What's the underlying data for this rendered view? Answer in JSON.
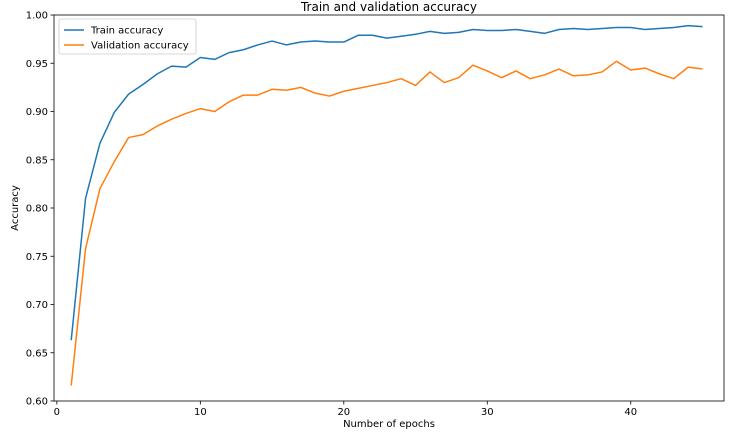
{
  "chart_data": {
    "type": "line",
    "title": "Train and validation accuracy",
    "xlabel": "Number of epochs",
    "ylabel": "Accuracy",
    "xlim": [
      -0.2,
      46.5
    ],
    "ylim": [
      0.6,
      1.0
    ],
    "xticks": [
      0,
      10,
      20,
      30,
      40
    ],
    "yticks": [
      0.6,
      0.65,
      0.7,
      0.75,
      0.8,
      0.85,
      0.9,
      0.95,
      1.0
    ],
    "ytick_labels": [
      "0.60",
      "0.65",
      "0.70",
      "0.75",
      "0.80",
      "0.85",
      "0.90",
      "0.95",
      "1.00"
    ],
    "grid": false,
    "legend_position": "upper-left",
    "x": [
      1,
      2,
      3,
      4,
      5,
      6,
      7,
      8,
      9,
      10,
      11,
      12,
      13,
      14,
      15,
      16,
      17,
      18,
      19,
      20,
      21,
      22,
      23,
      24,
      25,
      26,
      27,
      28,
      29,
      30,
      31,
      32,
      33,
      34,
      35,
      36,
      37,
      38,
      39,
      40,
      41,
      42,
      43,
      44,
      45
    ],
    "series": [
      {
        "name": "Train accuracy",
        "color": "#1f77b4",
        "values": [
          0.663,
          0.81,
          0.867,
          0.899,
          0.918,
          0.928,
          0.939,
          0.947,
          0.946,
          0.956,
          0.954,
          0.961,
          0.964,
          0.969,
          0.973,
          0.969,
          0.972,
          0.973,
          0.972,
          0.972,
          0.979,
          0.979,
          0.976,
          0.978,
          0.98,
          0.983,
          0.981,
          0.982,
          0.985,
          0.984,
          0.984,
          0.985,
          0.983,
          0.981,
          0.985,
          0.986,
          0.985,
          0.986,
          0.987,
          0.987,
          0.985,
          0.986,
          0.987,
          0.989,
          0.988
        ]
      },
      {
        "name": "Validation accuracy",
        "color": "#ff7f0e",
        "values": [
          0.616,
          0.758,
          0.82,
          0.848,
          0.873,
          0.876,
          0.885,
          0.892,
          0.898,
          0.903,
          0.9,
          0.91,
          0.917,
          0.917,
          0.923,
          0.922,
          0.925,
          0.919,
          0.916,
          0.921,
          0.924,
          0.927,
          0.93,
          0.934,
          0.927,
          0.941,
          0.93,
          0.935,
          0.948,
          0.942,
          0.935,
          0.942,
          0.934,
          0.938,
          0.944,
          0.937,
          0.938,
          0.941,
          0.952,
          0.943,
          0.945,
          0.939,
          0.934,
          0.946,
          0.944
        ]
      }
    ]
  }
}
